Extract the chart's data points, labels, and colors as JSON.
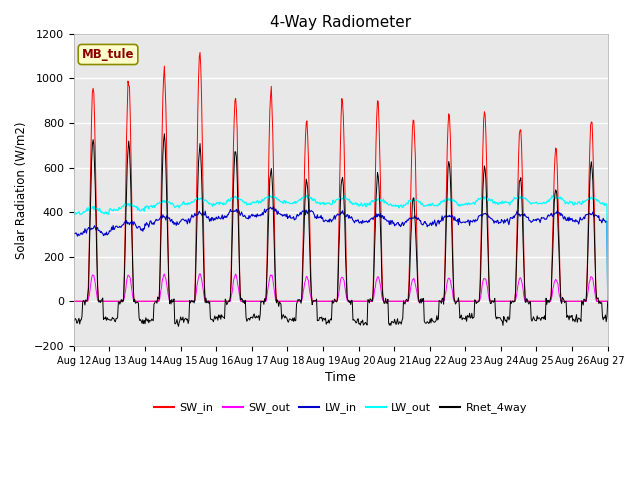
{
  "title": "4-Way Radiometer",
  "xlabel": "Time",
  "ylabel": "Solar Radiation (W/m2)",
  "ylim": [
    -200,
    1200
  ],
  "station_label": "MB_tule",
  "plot_bg": "#e8e8e8",
  "fig_bg": "#ffffff",
  "grid_color": "#ffffff",
  "x_tick_labels": [
    "Aug 12",
    "Aug 13",
    "Aug 14",
    "Aug 15",
    "Aug 16",
    "Aug 17",
    "Aug 18",
    "Aug 19",
    "Aug 20",
    "Aug 21",
    "Aug 22",
    "Aug 23",
    "Aug 24",
    "Aug 25",
    "Aug 26",
    "Aug 27"
  ],
  "n_days": 15,
  "points_per_day": 48,
  "sw_in_peak": [
    970,
    1000,
    1040,
    1130,
    920,
    950,
    800,
    900,
    900,
    830,
    850,
    850,
    780,
    680,
    820
  ],
  "sw_out_peak": [
    120,
    120,
    120,
    120,
    120,
    120,
    110,
    110,
    110,
    105,
    105,
    105,
    105,
    100,
    110
  ],
  "lw_in_base": [
    300,
    325,
    350,
    365,
    375,
    385,
    375,
    365,
    355,
    345,
    352,
    358,
    362,
    368,
    362
  ],
  "lw_out_base": [
    395,
    410,
    425,
    435,
    440,
    445,
    442,
    438,
    432,
    428,
    433,
    438,
    442,
    442,
    438
  ],
  "rnet_peak": [
    730,
    710,
    750,
    700,
    680,
    600,
    540,
    560,
    570,
    460,
    620,
    600,
    560,
    510,
    625
  ],
  "rnet_night": [
    -80,
    -85,
    -90,
    -80,
    -75,
    -70,
    -80,
    -90,
    -100,
    -95,
    -80,
    -70,
    -85,
    -75,
    -80
  ],
  "colors": {
    "sw_in": "#ff0000",
    "sw_out": "#ff00ff",
    "lw_in": "#0000cc",
    "lw_out": "#00ffff",
    "rnet": "#000000"
  },
  "label_box": {
    "facecolor": "#ffffcc",
    "edgecolor": "#8b8b00",
    "textcolor": "#8b0000"
  }
}
